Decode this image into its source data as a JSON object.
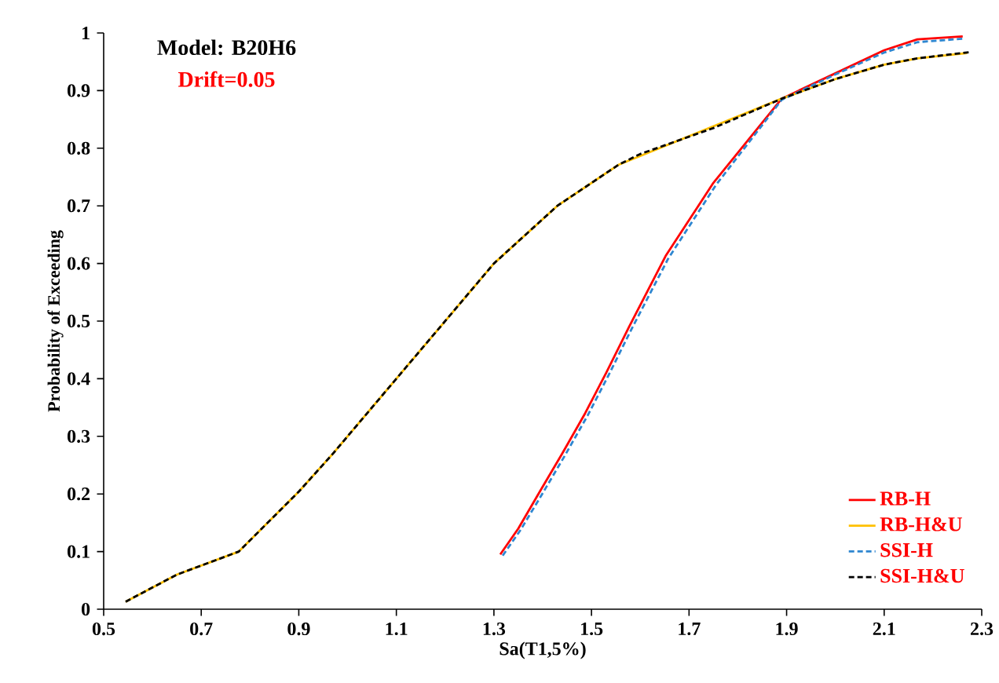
{
  "chart_data": {
    "type": "line",
    "xlabel": "Sa(T1,5%)",
    "ylabel": "Probability  of Exceeding",
    "annotations": [
      "Model: B20H6",
      "Drift=0.05"
    ],
    "xlim": [
      0.5,
      2.3
    ],
    "xticks": [
      0.5,
      0.7,
      0.9,
      1.1,
      1.3,
      1.5,
      1.7,
      1.9,
      2.1,
      2.3
    ],
    "ylim": [
      0,
      1
    ],
    "yticks": [
      0,
      0.1,
      0.2,
      0.3,
      0.4,
      0.5,
      0.6,
      0.7,
      0.8,
      0.9,
      1
    ],
    "grid": false,
    "legend": "bottom right",
    "marker": "none",
    "series": [
      {
        "name": "RB-H",
        "color": "#ff0000",
        "line_style": "solid",
        "x": [
          1.313,
          1.35,
          1.394,
          1.44,
          1.487,
          1.53,
          1.577,
          1.652,
          1.75,
          1.89,
          2.0,
          2.1,
          2.168,
          2.261
        ],
        "values": [
          0.095,
          0.14,
          0.204,
          0.27,
          0.34,
          0.41,
          0.49,
          0.613,
          0.74,
          0.886,
          0.93,
          0.97,
          0.989,
          0.994
        ]
      },
      {
        "name": "RB-H&U",
        "color": "#ffc000",
        "line_style": "solid",
        "x": [
          0.545,
          0.65,
          0.777,
          0.9,
          0.97,
          1.1,
          1.14,
          1.3,
          1.43,
          1.555,
          1.89,
          2.0,
          2.1,
          2.168,
          2.27
        ],
        "values": [
          0.013,
          0.06,
          0.1,
          0.204,
          0.27,
          0.4,
          0.44,
          0.6,
          0.7,
          0.771,
          0.886,
          0.92,
          0.945,
          0.956,
          0.965
        ]
      },
      {
        "name": "SSI-H",
        "color": "#2e86d0",
        "line_style": "dashed",
        "x": [
          1.318,
          1.355,
          1.399,
          1.445,
          1.492,
          1.535,
          1.582,
          1.657,
          1.755,
          1.89,
          2.0,
          2.1,
          2.168,
          2.261
        ],
        "values": [
          0.093,
          0.138,
          0.2,
          0.266,
          0.336,
          0.406,
          0.486,
          0.608,
          0.736,
          0.884,
          0.928,
          0.966,
          0.984,
          0.99
        ]
      },
      {
        "name": "SSI-H&U",
        "color": "#000000",
        "line_style": "dashed",
        "x": [
          0.545,
          0.65,
          0.777,
          0.9,
          0.97,
          1.1,
          1.14,
          1.3,
          1.43,
          1.555,
          1.6,
          1.75,
          1.89,
          2.0,
          2.1,
          2.168,
          2.278
        ],
        "values": [
          0.013,
          0.06,
          0.1,
          0.204,
          0.27,
          0.4,
          0.44,
          0.6,
          0.7,
          0.771,
          0.79,
          0.835,
          0.886,
          0.92,
          0.945,
          0.956,
          0.967
        ]
      }
    ]
  }
}
